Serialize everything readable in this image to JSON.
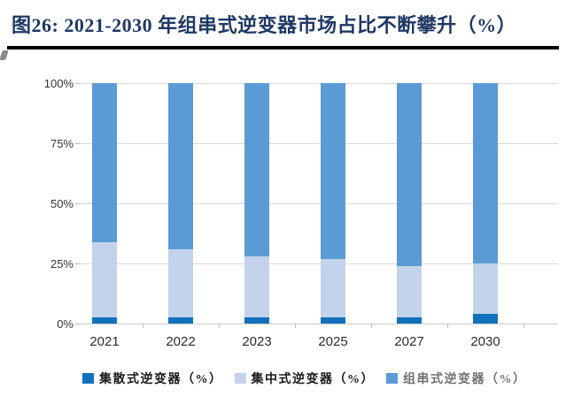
{
  "figure": {
    "title": "图26:  2021-2030 年组串式逆变器市场占比不断攀升（%）"
  },
  "chart_data": {
    "type": "bar",
    "stacked": true,
    "percent_stacked": true,
    "title": "图26: 2021-2030 年组串式逆变器市场占比不断攀升（%）",
    "categories": [
      "2021",
      "2022",
      "2023",
      "2025",
      "2027",
      "2030"
    ],
    "series": [
      {
        "name": "集散式逆变器（%）",
        "color": "#1271BC",
        "values": [
          2.5,
          2.5,
          2.5,
          2.5,
          2.5,
          4
        ]
      },
      {
        "name": "集中式逆变器（%）",
        "color": "#C3D3EB",
        "values": [
          31.5,
          28.5,
          25.5,
          24.5,
          21.5,
          21
        ]
      },
      {
        "name": "组串式逆变器（%）",
        "color": "#5B9BD5",
        "values": [
          66,
          69,
          72,
          73,
          76,
          75
        ]
      }
    ],
    "xlabel": "",
    "ylabel": "",
    "ylim": [
      0,
      100
    ],
    "yticks": [
      "0%",
      "25%",
      "50%",
      "75%",
      "100%"
    ],
    "grid": true,
    "gridline_color": "#D9D9D9",
    "legend_position": "bottom",
    "title_color": "#1F3864"
  }
}
